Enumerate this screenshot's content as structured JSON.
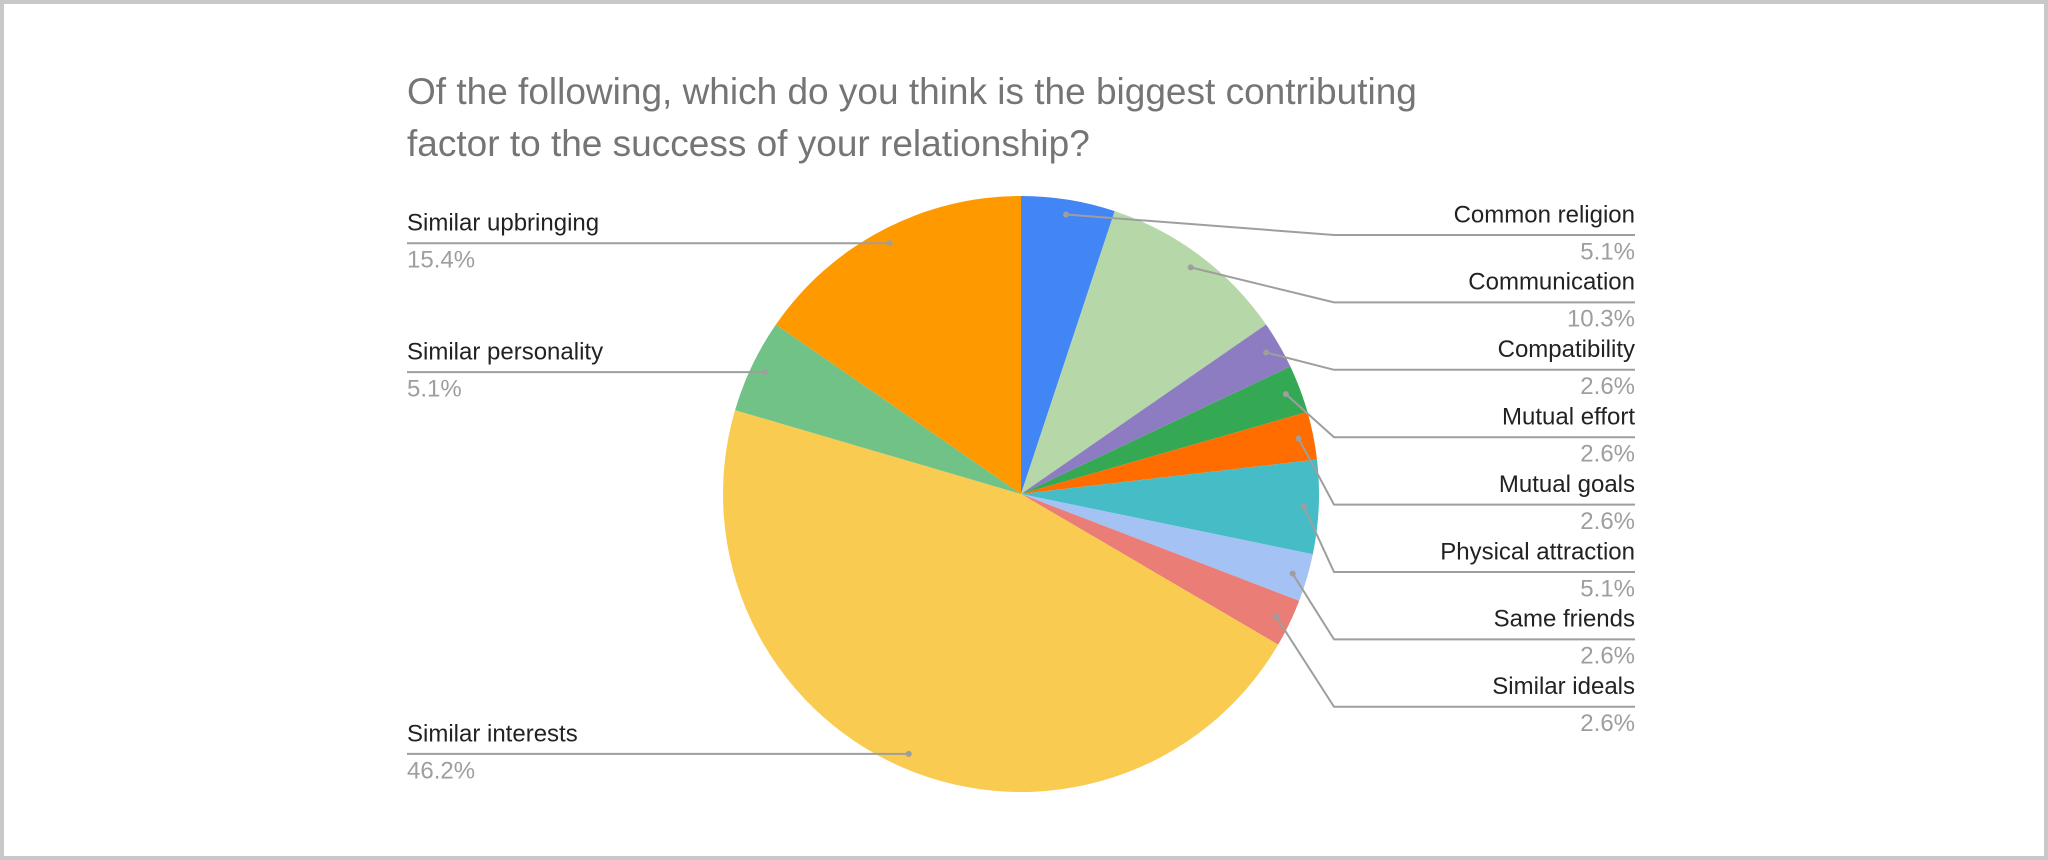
{
  "chart_data": {
    "type": "pie",
    "title": [
      "Of the following, which do you think is the biggest contributing",
      "factor to the success of your relationship?"
    ],
    "categories": [
      "Common religion",
      "Communication",
      "Compatibility",
      "Mutual effort",
      "Mutual goals",
      "Physical attraction",
      "Same friends",
      "Similar ideals",
      "Similar interests",
      "Similar personality",
      "Similar upbringing"
    ],
    "values": [
      5.1,
      10.3,
      2.6,
      2.6,
      2.6,
      5.1,
      2.6,
      2.6,
      46.2,
      5.1,
      15.4
    ],
    "value_labels": [
      "5.1%",
      "10.3%",
      "2.6%",
      "2.6%",
      "2.6%",
      "5.1%",
      "2.6%",
      "2.6%",
      "46.2%",
      "5.1%",
      "15.4%"
    ],
    "colors": [
      "#4285f4",
      "#b6d7a8",
      "#8e7cc3",
      "#34a853",
      "#ff6d01",
      "#46bdc6",
      "#a4c2f4",
      "#ea7d75",
      "#f9cb50",
      "#71c287",
      "#ff9900"
    ]
  }
}
